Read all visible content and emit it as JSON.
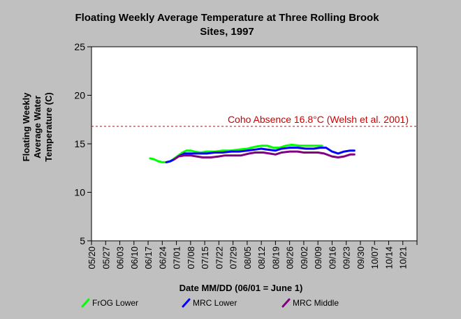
{
  "chart_data": {
    "type": "line",
    "title_lines": [
      "Floating Weekly Average Temperature at Three Rolling Brook",
      "Sites, 1997"
    ],
    "xlabel": "Date MM/DD (06/01 = June 1)",
    "ylabel_lines": [
      "Floating Weekly",
      "Average Water",
      "Temperature (C)"
    ],
    "x_ticks": [
      "05/20",
      "05/27",
      "06/03",
      "06/10",
      "06/17",
      "06/24",
      "07/01",
      "07/08",
      "07/15",
      "07/22",
      "07/29",
      "08/05",
      "08/12",
      "08/19",
      "08/26",
      "09/02",
      "09/09",
      "09/16",
      "09/23",
      "09/30",
      "10/07",
      "10/14",
      "10/21"
    ],
    "y_ticks": [
      5,
      10,
      15,
      20,
      25
    ],
    "ylim": [
      5,
      25
    ],
    "x_range": [
      "05/20",
      "10/28"
    ],
    "grid": false,
    "threshold": {
      "value": 16.8,
      "label": "Coho Absence 16.8°C (Welsh et al. 2001)",
      "color": "#cc0000"
    },
    "legend_position": "bottom",
    "series": [
      {
        "name": "FrOG Lower",
        "color": "#00ff00",
        "points": [
          [
            "06/18",
            13.5
          ],
          [
            "06/20",
            13.4
          ],
          [
            "06/22",
            13.2
          ],
          [
            "06/24",
            13.1
          ],
          [
            "06/26",
            13.1
          ],
          [
            "06/28",
            13.2
          ],
          [
            "06/30",
            13.5
          ],
          [
            "07/02",
            13.8
          ],
          [
            "07/04",
            14.1
          ],
          [
            "07/06",
            14.3
          ],
          [
            "07/08",
            14.3
          ],
          [
            "07/10",
            14.2
          ],
          [
            "07/13",
            14.1
          ],
          [
            "07/16",
            14.2
          ],
          [
            "07/20",
            14.2
          ],
          [
            "07/24",
            14.3
          ],
          [
            "07/28",
            14.3
          ],
          [
            "08/01",
            14.4
          ],
          [
            "08/05",
            14.5
          ],
          [
            "08/09",
            14.7
          ],
          [
            "08/12",
            14.8
          ],
          [
            "08/15",
            14.8
          ],
          [
            "08/18",
            14.6
          ],
          [
            "08/21",
            14.6
          ],
          [
            "08/24",
            14.8
          ],
          [
            "08/27",
            14.9
          ],
          [
            "08/31",
            14.8
          ],
          [
            "09/04",
            14.8
          ],
          [
            "09/08",
            14.8
          ],
          [
            "09/11",
            14.8
          ]
        ]
      },
      {
        "name": "MRC Lower",
        "color": "#0000ff",
        "points": [
          [
            "06/26",
            13.1
          ],
          [
            "06/28",
            13.2
          ],
          [
            "06/30",
            13.4
          ],
          [
            "07/02",
            13.7
          ],
          [
            "07/05",
            14.0
          ],
          [
            "07/08",
            14.0
          ],
          [
            "07/12",
            14.0
          ],
          [
            "07/16",
            14.0
          ],
          [
            "07/20",
            14.1
          ],
          [
            "07/24",
            14.1
          ],
          [
            "07/28",
            14.2
          ],
          [
            "08/01",
            14.2
          ],
          [
            "08/05",
            14.3
          ],
          [
            "08/09",
            14.4
          ],
          [
            "08/12",
            14.5
          ],
          [
            "08/15",
            14.4
          ],
          [
            "08/19",
            14.3
          ],
          [
            "08/22",
            14.5
          ],
          [
            "08/26",
            14.6
          ],
          [
            "08/30",
            14.6
          ],
          [
            "09/03",
            14.5
          ],
          [
            "09/07",
            14.5
          ],
          [
            "09/10",
            14.6
          ],
          [
            "09/13",
            14.6
          ],
          [
            "09/16",
            14.2
          ],
          [
            "09/19",
            14.0
          ],
          [
            "09/22",
            14.2
          ],
          [
            "09/25",
            14.3
          ],
          [
            "09/27",
            14.3
          ]
        ]
      },
      {
        "name": "MRC Middle",
        "color": "#800080",
        "points": [
          [
            "06/30",
            13.4
          ],
          [
            "07/02",
            13.7
          ],
          [
            "07/05",
            13.8
          ],
          [
            "07/08",
            13.8
          ],
          [
            "07/11",
            13.7
          ],
          [
            "07/14",
            13.6
          ],
          [
            "07/18",
            13.6
          ],
          [
            "07/22",
            13.7
          ],
          [
            "07/25",
            13.8
          ],
          [
            "07/29",
            13.8
          ],
          [
            "08/02",
            13.8
          ],
          [
            "08/06",
            14.0
          ],
          [
            "08/09",
            14.1
          ],
          [
            "08/13",
            14.1
          ],
          [
            "08/16",
            14.0
          ],
          [
            "08/19",
            13.9
          ],
          [
            "08/22",
            14.1
          ],
          [
            "08/26",
            14.2
          ],
          [
            "08/30",
            14.2
          ],
          [
            "09/02",
            14.1
          ],
          [
            "09/06",
            14.1
          ],
          [
            "09/09",
            14.1
          ],
          [
            "09/12",
            14.0
          ],
          [
            "09/16",
            13.7
          ],
          [
            "09/19",
            13.6
          ],
          [
            "09/22",
            13.7
          ],
          [
            "09/25",
            13.9
          ],
          [
            "09/27",
            13.9
          ]
        ]
      }
    ]
  }
}
